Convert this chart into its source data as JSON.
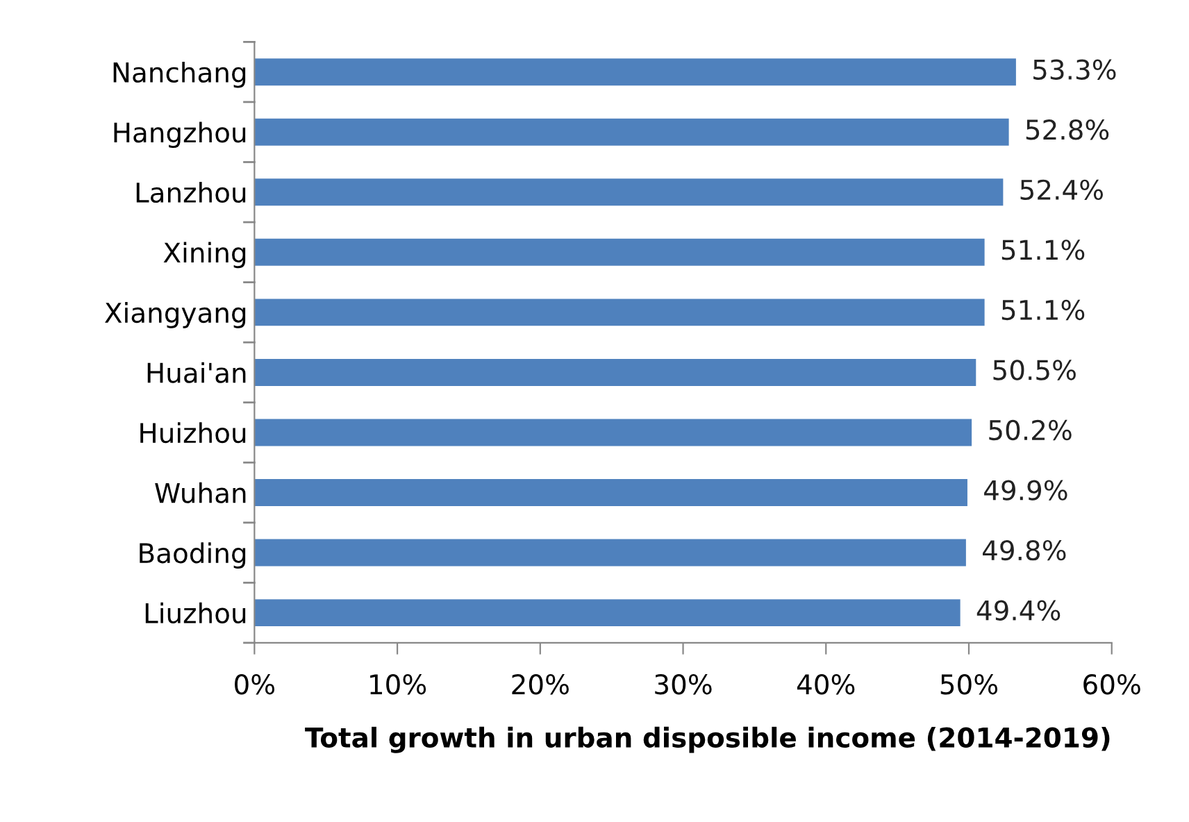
{
  "chart_data": {
    "type": "bar",
    "orientation": "horizontal",
    "xlabel": "Total growth in urban disposible income (2014-2019)",
    "categories": [
      "Nanchang",
      "Hangzhou",
      "Lanzhou",
      "Xining",
      "Xiangyang",
      "Huai'an",
      "Huizhou",
      "Wuhan",
      "Baoding",
      "Liuzhou"
    ],
    "values": [
      53.3,
      52.8,
      52.4,
      51.1,
      51.1,
      50.5,
      50.2,
      49.9,
      49.8,
      49.4
    ],
    "value_labels": [
      "53.3%",
      "52.8%",
      "52.4%",
      "51.1%",
      "51.1%",
      "50.5%",
      "50.2%",
      "49.9%",
      "49.8%",
      "49.4%"
    ],
    "color": "#4f81bd",
    "xlim": [
      0,
      60
    ],
    "xticks": [
      {
        "value": 0,
        "label": "0%"
      },
      {
        "value": 10,
        "label": "10%"
      },
      {
        "value": 20,
        "label": "20%"
      },
      {
        "value": 30,
        "label": "30%"
      },
      {
        "value": 40,
        "label": "40%"
      },
      {
        "value": 50,
        "label": "50%"
      },
      {
        "value": 60,
        "label": "60%"
      }
    ],
    "grid": false,
    "legend": false
  }
}
